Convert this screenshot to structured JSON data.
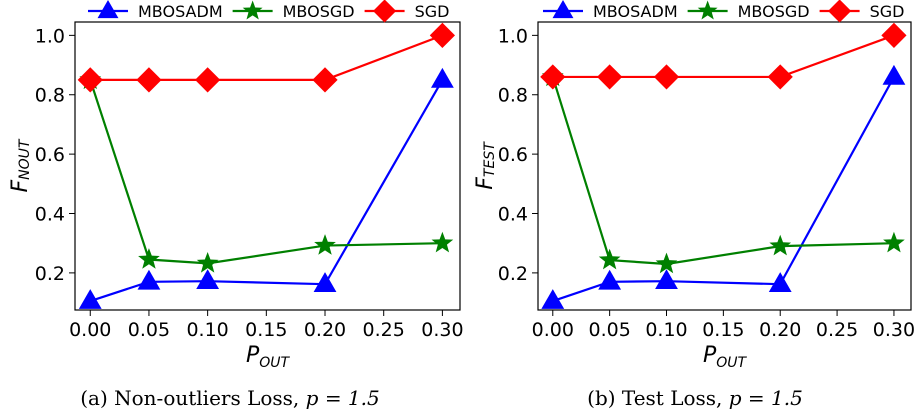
{
  "figure": {
    "captions": [
      {
        "prefix": "(a) Non-outliers Loss, ",
        "math": "p = 1.5"
      },
      {
        "prefix": "(b) Test Loss, ",
        "math": "p = 1.5"
      }
    ]
  },
  "chart_data": [
    {
      "type": "line",
      "title": "",
      "xlabel": {
        "main": "P",
        "sub": "OUT"
      },
      "ylabel": {
        "main": "F",
        "sub": "NOUT"
      },
      "x": [
        0.0,
        0.05,
        0.1,
        0.2,
        0.3
      ],
      "xlim": [
        -0.013,
        0.315
      ],
      "ylim": [
        0.075,
        1.045
      ],
      "xticks": [
        "0.00",
        "0.05",
        "0.10",
        "0.15",
        "0.20",
        "0.25",
        "0.30"
      ],
      "xtick_values": [
        0.0,
        0.05,
        0.1,
        0.15,
        0.2,
        0.25,
        0.3
      ],
      "yticks": [
        "0.2",
        "0.4",
        "0.6",
        "0.8",
        "1.0"
      ],
      "ytick_values": [
        0.2,
        0.4,
        0.6,
        0.8,
        1.0
      ],
      "grid": false,
      "legend": "top, outside plot",
      "series": [
        {
          "name": "MBOSADM",
          "color": "#0000ff",
          "marker": "triangle",
          "values": [
            0.105,
            0.17,
            0.172,
            0.162,
            0.85
          ]
        },
        {
          "name": "MBOSGD",
          "color": "#008000",
          "marker": "star",
          "values": [
            0.85,
            0.245,
            0.232,
            0.292,
            0.3
          ]
        },
        {
          "name": "SGD",
          "color": "#ff0000",
          "marker": "diamond",
          "values": [
            0.85,
            0.85,
            0.85,
            0.85,
            1.0
          ]
        }
      ]
    },
    {
      "type": "line",
      "title": "",
      "xlabel": {
        "main": "P",
        "sub": "OUT"
      },
      "ylabel": {
        "main": "F",
        "sub": "TEST"
      },
      "x": [
        0.0,
        0.05,
        0.1,
        0.2,
        0.3
      ],
      "xlim": [
        -0.013,
        0.315
      ],
      "ylim": [
        0.075,
        1.045
      ],
      "xticks": [
        "0.00",
        "0.05",
        "0.10",
        "0.15",
        "0.20",
        "0.25",
        "0.30"
      ],
      "xtick_values": [
        0.0,
        0.05,
        0.1,
        0.15,
        0.2,
        0.25,
        0.3
      ],
      "yticks": [
        "0.2",
        "0.4",
        "0.6",
        "0.8",
        "1.0"
      ],
      "ytick_values": [
        0.2,
        0.4,
        0.6,
        0.8,
        1.0
      ],
      "grid": false,
      "legend": "top, outside plot",
      "series": [
        {
          "name": "MBOSADM",
          "color": "#0000ff",
          "marker": "triangle",
          "values": [
            0.105,
            0.17,
            0.172,
            0.162,
            0.86
          ]
        },
        {
          "name": "MBOSGD",
          "color": "#008000",
          "marker": "star",
          "values": [
            0.86,
            0.243,
            0.23,
            0.29,
            0.3
          ]
        },
        {
          "name": "SGD",
          "color": "#ff0000",
          "marker": "diamond",
          "values": [
            0.86,
            0.86,
            0.86,
            0.86,
            1.0
          ]
        }
      ]
    }
  ]
}
